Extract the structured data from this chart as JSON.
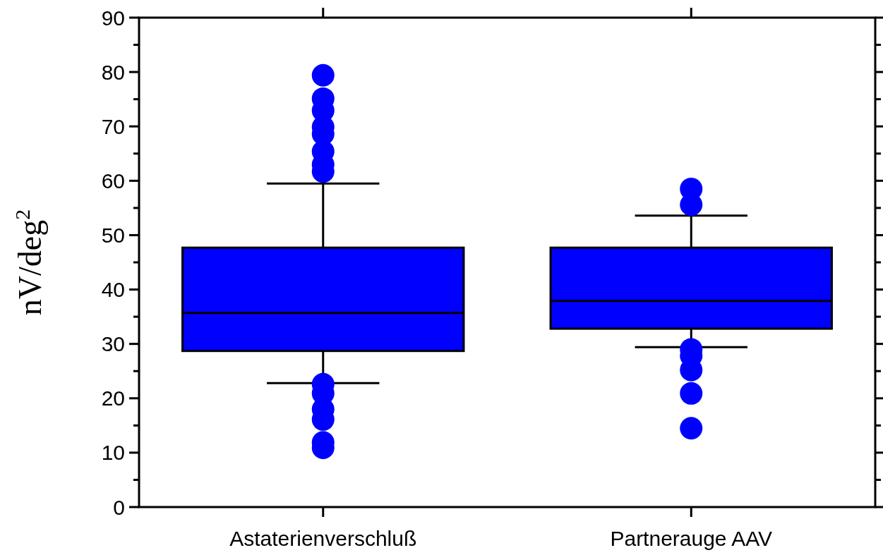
{
  "chart_data": {
    "type": "box",
    "ylabel": "nV/deg$^{2}$",
    "categories": [
      "Astaterienverschluß",
      "Partnerauge AAV"
    ],
    "color": "#0000ff",
    "boxes": [
      {
        "low": 22.8,
        "q1": 28.7,
        "median": 35.7,
        "q3": 47.7,
        "high": 59.5,
        "outliers": [
          79.4,
          75.1,
          72.9,
          69.9,
          68.6,
          65.4,
          63.0,
          61.7,
          22.6,
          20.9,
          18.0,
          16.1,
          11.9,
          10.9
        ]
      },
      {
        "low": 29.4,
        "q1": 32.8,
        "median": 37.9,
        "q3": 47.7,
        "high": 53.6,
        "outliers": [
          58.5,
          55.6,
          29.0,
          27.8,
          25.2,
          20.9,
          14.5
        ]
      }
    ],
    "ylim": [
      0,
      90
    ],
    "yticks": [
      0,
      {
        "value": 5,
        "label": null
      },
      10,
      {
        "value": 15,
        "label": null
      },
      20,
      {
        "value": 25,
        "label": null
      },
      30,
      {
        "value": 35,
        "label": null
      },
      40,
      {
        "value": 45,
        "label": null
      },
      50,
      {
        "value": 55,
        "label": null
      },
      60,
      {
        "value": 65,
        "label": null
      },
      70,
      {
        "value": 75,
        "label": null
      },
      80,
      {
        "value": 85,
        "label": null
      },
      90
    ],
    "grid": false
  }
}
